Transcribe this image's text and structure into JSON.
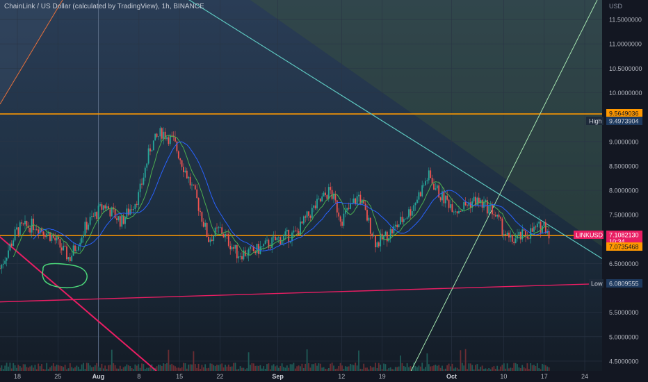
{
  "header": {
    "title": "ChainLink / US Dollar (calculated by TradingView), 1h, BINANCE"
  },
  "price_axis": {
    "currency": "USD",
    "ticks": [
      "11.5000000",
      "11.0000000",
      "10.5000000",
      "10.0000000",
      "9.0000000",
      "8.5000000",
      "8.0000000",
      "7.5000000",
      "6.5000000",
      "5.5000000",
      "5.0000000",
      "4.5000000"
    ]
  },
  "time_axis": {
    "ticks": [
      "18",
      "25",
      "Aug",
      "8",
      "15",
      "22",
      "Sep",
      "12",
      "19",
      "Oct",
      "10",
      "17",
      "24"
    ]
  },
  "badges": {
    "high_top": "9.5649036",
    "high_label": "High",
    "high_value": "9.4973904",
    "symbol_label": "LINKUSD",
    "symbol_price": "7.1082130",
    "countdown": "10:34",
    "support_value": "7.0735468",
    "low_label": "Low",
    "low_value": "6.0809555"
  },
  "colors": {
    "background": "#131722",
    "candle_up": "#26a69a",
    "candle_down": "#ef5350",
    "orange_line": "#ff9800",
    "pink_line": "#e91e63",
    "teal_line": "#5ec8c0",
    "green_line": "#a5e6b0",
    "ma_fast": "#4caf50",
    "ma_slow": "#2962ff",
    "circle": "#4cd97a"
  },
  "chart_data": {
    "type": "line",
    "symbol": "LINKUSD",
    "interval": "1h",
    "x_scale": "date",
    "ylim": [
      4.3,
      11.9
    ],
    "xlim": [
      "2020-07-15",
      "2020-10-27"
    ],
    "grid": true,
    "series": [
      {
        "name": "",
        "x": [
          "2020-07-15",
          "2020-07-18",
          "2020-07-21",
          "2020-07-24",
          "2020-07-27",
          "2020-07-30",
          "2020-08-02",
          "2020-08-05",
          "2020-08-08",
          "2020-08-10",
          "2020-08-12",
          "2020-08-14",
          "2020-08-16",
          "2020-08-18",
          "2020-08-20",
          "2020-08-22",
          "2020-08-25",
          "2020-08-28",
          "2020-09-01",
          "2020-09-04",
          "2020-09-07",
          "2020-09-10",
          "2020-09-12",
          "2020-09-15",
          "2020-09-18",
          "2020-09-21",
          "2020-09-24",
          "2020-09-27",
          "2020-09-29",
          "2020-10-02",
          "2020-10-05",
          "2020-10-08",
          "2020-10-11",
          "2020-10-14",
          "2020-10-17",
          "2020-10-18"
        ],
        "y": [
          6.4,
          7.2,
          7.3,
          7.05,
          6.6,
          7.3,
          7.7,
          7.35,
          7.9,
          8.9,
          9.2,
          9.0,
          8.4,
          7.8,
          7.0,
          7.2,
          6.7,
          6.75,
          7.0,
          7.1,
          7.6,
          8.0,
          7.4,
          7.9,
          6.9,
          7.2,
          7.6,
          8.3,
          7.9,
          7.6,
          7.8,
          7.6,
          6.95,
          7.1,
          7.3,
          7.1
        ]
      }
    ],
    "horizontal_levels": [
      9.5649036,
      7.0735468
    ],
    "trend_lines": [
      {
        "from": [
          "2020-07-11",
          7.45
        ],
        "to": [
          "2020-08-11",
          4.3
        ]
      },
      {
        "from": [
          "2020-07-11",
          5.7
        ],
        "to": [
          "2020-10-25",
          6.08
        ]
      },
      {
        "from": [
          "2020-08-14",
          12.1
        ],
        "to": [
          "2020-10-27",
          6.6
        ]
      },
      {
        "from": [
          "2020-09-24",
          4.3
        ],
        "to": [
          "2020-10-27",
          12.1
        ]
      }
    ]
  }
}
